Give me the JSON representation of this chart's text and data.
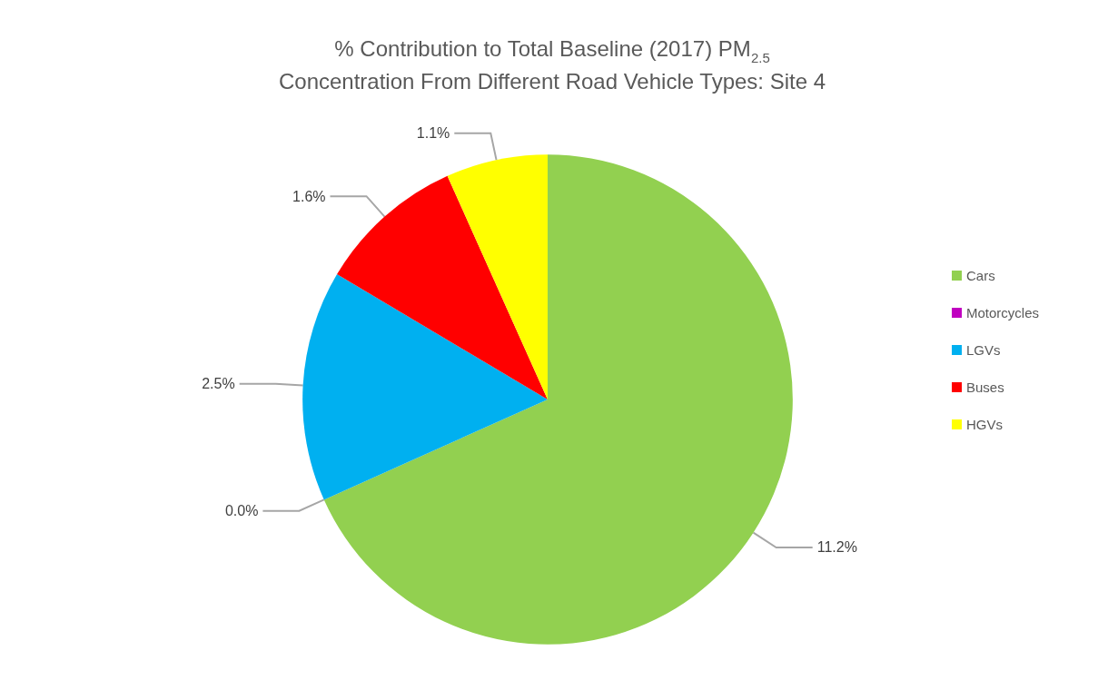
{
  "chart_data": {
    "type": "pie",
    "title": "% Contribution to Total Baseline (2017) PM$_{2.5}$ Concentration From Different Road Vehicle Types: Site 4",
    "categories": [
      "Cars",
      "Motorcycles",
      "LGVs",
      "Buses",
      "HGVs"
    ],
    "values": [
      11.2,
      0.0,
      2.5,
      1.6,
      1.1
    ],
    "value_labels": [
      "11.2%",
      "0.0%",
      "2.5%",
      "1.6%",
      "1.1%"
    ],
    "colors": [
      "#92d050",
      "#c000c0",
      "#00b0f0",
      "#ff0000",
      "#ffff00"
    ],
    "legend": "right"
  }
}
